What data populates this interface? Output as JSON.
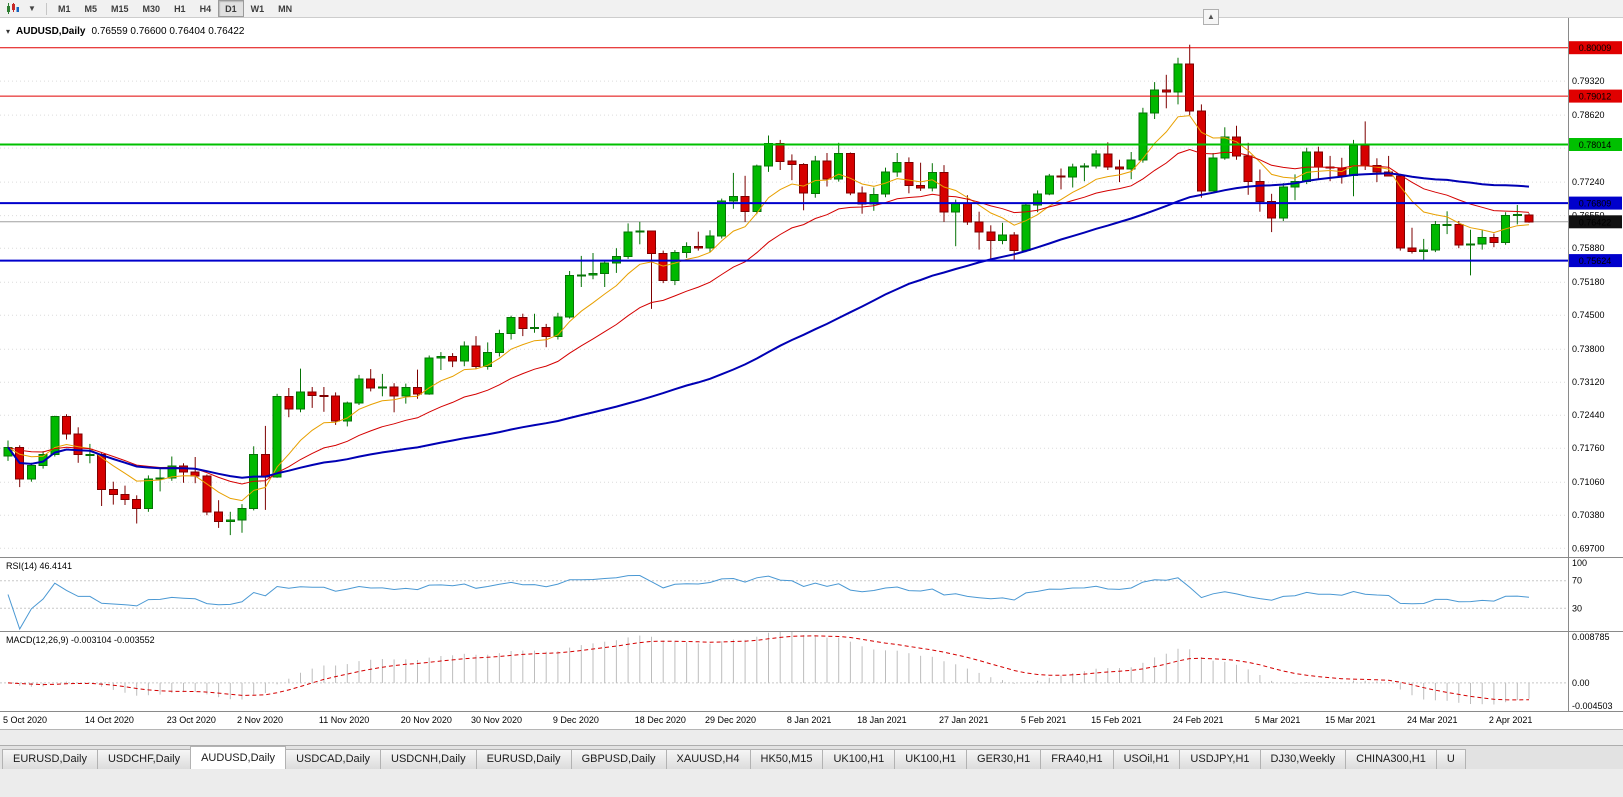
{
  "toolbar": {
    "chart_type_icon": "candlestick-chart-icon",
    "dropdown_icon": "chevron-down-icon",
    "scroll_up_icon": "chevron-up-icon",
    "periods": [
      "M1",
      "M5",
      "M15",
      "M30",
      "H1",
      "H4",
      "D1",
      "W1",
      "MN"
    ],
    "active_period": "D1"
  },
  "chart_header": {
    "symbol_label": "AUDUSD,Daily",
    "ohlc_values": "0.76559 0.76600 0.76404 0.76422",
    "collapse_glyph": "▾"
  },
  "indicators": {
    "rsi_label": "RSI(14) 46.4141",
    "macd_label": "MACD(12,26,9) -0.003104 -0.003552"
  },
  "axis": {
    "price_labels": [
      "0.79320",
      "0.78620",
      "0.77940",
      "0.77240",
      "0.76550",
      "0.75880",
      "0.75180",
      "0.74500",
      "0.73800",
      "0.73120",
      "0.72440",
      "0.71760",
      "0.71060",
      "0.70380",
      "0.69700"
    ],
    "rsi_labels": [
      "100",
      "70",
      "30"
    ],
    "macd_labels": [
      "0.008785",
      "0.00",
      "-0.004503"
    ],
    "current_price_box": "0.76422"
  },
  "hlines": [
    {
      "price": 0.80009,
      "label": "0.80009",
      "color": "#e00000",
      "width": 1
    },
    {
      "price": 0.79012,
      "label": "0.79012",
      "color": "#e00000",
      "width": 1
    },
    {
      "price": 0.78014,
      "label": "0.78014",
      "color": "#00c000",
      "width": 2
    },
    {
      "price": 0.76809,
      "label": "0.76809",
      "color": "#0000cc",
      "width": 2
    },
    {
      "price": 0.75624,
      "label": "0.75624",
      "color": "#0000cc",
      "width": 2
    }
  ],
  "chart_data": {
    "type": "candlestick",
    "symbol": "AUDUSD",
    "timeframe": "Daily",
    "y_range": {
      "max": 0.8062,
      "min": 0.6952
    },
    "current_bid": 0.76422,
    "x_labels": [
      [
        0,
        "5 Oct 2020"
      ],
      [
        7,
        "14 Oct 2020"
      ],
      [
        14,
        "23 Oct 2020"
      ],
      [
        20,
        "2 Nov 2020"
      ],
      [
        27,
        "11 Nov 2020"
      ],
      [
        34,
        "20 Nov 2020"
      ],
      [
        40,
        "30 Nov 2020"
      ],
      [
        47,
        "9 Dec 2020"
      ],
      [
        54,
        "18 Dec 2020"
      ],
      [
        60,
        "29 Dec 2020"
      ],
      [
        67,
        "8 Jan 2021"
      ],
      [
        73,
        "18 Jan 2021"
      ],
      [
        80,
        "27 Jan 2021"
      ],
      [
        87,
        "5 Feb 2021"
      ],
      [
        93,
        "15 Feb 2021"
      ],
      [
        100,
        "24 Feb 2021"
      ],
      [
        107,
        "5 Mar 2021"
      ],
      [
        113,
        "15 Mar 2021"
      ],
      [
        120,
        "24 Mar 2021"
      ],
      [
        127,
        "2 Apr 2021"
      ]
    ],
    "moving_averages": [
      {
        "period": 8,
        "method": "ema",
        "color": "#e8a000",
        "width": 1
      },
      {
        "period": 20,
        "method": "ema",
        "color": "#d40000",
        "width": 1
      },
      {
        "period": 55,
        "method": "sma",
        "color": "#0000b4",
        "width": 2
      }
    ],
    "rsi": {
      "period": 14,
      "current": 46.4141,
      "levels": [
        30,
        70
      ]
    },
    "macd": {
      "fast": 12,
      "slow": 26,
      "signal": 9,
      "current_main": -0.003104,
      "current_signal": -0.003552,
      "range": {
        "max": 0.008785,
        "min": -0.004503
      }
    },
    "colors": {
      "bull": "#00b900",
      "bull_border": "#067306",
      "bear": "#d60000",
      "bear_border": "#7d0000",
      "grid": "#dcdcdc",
      "bid": "#a0a0a0",
      "rsi": "#4a98d3",
      "macd_hist": "#bdbdbd",
      "macd_signal": "#d40000"
    },
    "ohlc": [
      [
        0.716,
        0.7192,
        0.715,
        0.7178
      ],
      [
        0.7178,
        0.7182,
        0.7096,
        0.7113
      ],
      [
        0.7113,
        0.7146,
        0.7107,
        0.714
      ],
      [
        0.714,
        0.717,
        0.7134,
        0.7163
      ],
      [
        0.7163,
        0.7243,
        0.7159,
        0.7241
      ],
      [
        0.7241,
        0.7246,
        0.7194,
        0.7205
      ],
      [
        0.7205,
        0.7219,
        0.7146,
        0.7163
      ],
      [
        0.7163,
        0.7185,
        0.7145,
        0.7163
      ],
      [
        0.7163,
        0.7166,
        0.7057,
        0.7091
      ],
      [
        0.7091,
        0.7107,
        0.706,
        0.7081
      ],
      [
        0.7081,
        0.7099,
        0.7059,
        0.707
      ],
      [
        0.707,
        0.7079,
        0.7021,
        0.7052
      ],
      [
        0.7052,
        0.712,
        0.7045,
        0.7113
      ],
      [
        0.7113,
        0.7137,
        0.7087,
        0.7115
      ],
      [
        0.7115,
        0.7159,
        0.7109,
        0.7139
      ],
      [
        0.7139,
        0.7145,
        0.7105,
        0.7127
      ],
      [
        0.7127,
        0.7158,
        0.7104,
        0.7119
      ],
      [
        0.7119,
        0.7122,
        0.7038,
        0.7045
      ],
      [
        0.7045,
        0.7069,
        0.7012,
        0.7025
      ],
      [
        0.7025,
        0.7045,
        0.6997,
        0.7028
      ],
      [
        0.7028,
        0.7061,
        0.7002,
        0.7052
      ],
      [
        0.7052,
        0.718,
        0.7048,
        0.7163
      ],
      [
        0.7163,
        0.7222,
        0.7049,
        0.7117
      ],
      [
        0.7117,
        0.7288,
        0.7115,
        0.7283
      ],
      [
        0.7283,
        0.73,
        0.724,
        0.7257
      ],
      [
        0.7257,
        0.734,
        0.725,
        0.7292
      ],
      [
        0.7292,
        0.7302,
        0.7259,
        0.7285
      ],
      [
        0.7285,
        0.7302,
        0.7251,
        0.7284
      ],
      [
        0.7284,
        0.7291,
        0.7224,
        0.7232
      ],
      [
        0.7232,
        0.7272,
        0.7221,
        0.7269
      ],
      [
        0.7269,
        0.7327,
        0.7265,
        0.7319
      ],
      [
        0.7319,
        0.7339,
        0.7293,
        0.73
      ],
      [
        0.73,
        0.7329,
        0.7283,
        0.7302
      ],
      [
        0.7302,
        0.731,
        0.725,
        0.7283
      ],
      [
        0.7283,
        0.7309,
        0.7268,
        0.7301
      ],
      [
        0.7301,
        0.7338,
        0.7278,
        0.7288
      ],
      [
        0.7288,
        0.7367,
        0.7286,
        0.7362
      ],
      [
        0.7362,
        0.7374,
        0.7337,
        0.7365
      ],
      [
        0.7365,
        0.7372,
        0.7343,
        0.7356
      ],
      [
        0.7356,
        0.7396,
        0.7345,
        0.7387
      ],
      [
        0.7387,
        0.7407,
        0.7339,
        0.7344
      ],
      [
        0.7344,
        0.7394,
        0.7338,
        0.7373
      ],
      [
        0.7373,
        0.742,
        0.7365,
        0.7412
      ],
      [
        0.7412,
        0.7449,
        0.74,
        0.7445
      ],
      [
        0.7445,
        0.7453,
        0.7407,
        0.7423
      ],
      [
        0.7423,
        0.7453,
        0.7414,
        0.7425
      ],
      [
        0.7425,
        0.7432,
        0.7384,
        0.7406
      ],
      [
        0.7406,
        0.7455,
        0.74,
        0.7446
      ],
      [
        0.7446,
        0.7541,
        0.7443,
        0.7532
      ],
      [
        0.7532,
        0.7572,
        0.7508,
        0.7533
      ],
      [
        0.7533,
        0.7578,
        0.7524,
        0.7536
      ],
      [
        0.7536,
        0.7563,
        0.7508,
        0.7557
      ],
      [
        0.7557,
        0.7588,
        0.7537,
        0.7571
      ],
      [
        0.7571,
        0.7639,
        0.7566,
        0.7621
      ],
      [
        0.7621,
        0.7642,
        0.7596,
        0.7623
      ],
      [
        0.7623,
        0.7624,
        0.7463,
        0.7577
      ],
      [
        0.7577,
        0.7583,
        0.7516,
        0.7521
      ],
      [
        0.7521,
        0.7584,
        0.7512,
        0.7579
      ],
      [
        0.7579,
        0.76,
        0.7568,
        0.7591
      ],
      [
        0.7591,
        0.7622,
        0.7583,
        0.7588
      ],
      [
        0.7588,
        0.7625,
        0.758,
        0.7613
      ],
      [
        0.7613,
        0.769,
        0.7608,
        0.7685
      ],
      [
        0.7685,
        0.7743,
        0.7669,
        0.7694
      ],
      [
        0.7694,
        0.7737,
        0.7642,
        0.7664
      ],
      [
        0.7664,
        0.776,
        0.7658,
        0.7757
      ],
      [
        0.7757,
        0.782,
        0.7745,
        0.7804
      ],
      [
        0.7804,
        0.7811,
        0.7749,
        0.7767
      ],
      [
        0.7767,
        0.7781,
        0.7728,
        0.776
      ],
      [
        0.776,
        0.7763,
        0.7666,
        0.7701
      ],
      [
        0.7701,
        0.7778,
        0.7692,
        0.7768
      ],
      [
        0.7768,
        0.7784,
        0.7715,
        0.7731
      ],
      [
        0.7731,
        0.7805,
        0.7725,
        0.7783
      ],
      [
        0.7783,
        0.7785,
        0.7697,
        0.7702
      ],
      [
        0.7702,
        0.7715,
        0.7659,
        0.7679
      ],
      [
        0.7679,
        0.7713,
        0.7665,
        0.7699
      ],
      [
        0.7699,
        0.7754,
        0.7693,
        0.7745
      ],
      [
        0.7745,
        0.7784,
        0.7735,
        0.7764
      ],
      [
        0.7764,
        0.7775,
        0.7701,
        0.7717
      ],
      [
        0.7717,
        0.7764,
        0.7706,
        0.7712
      ],
      [
        0.7712,
        0.7763,
        0.7705,
        0.7744
      ],
      [
        0.7744,
        0.7759,
        0.7642,
        0.7662
      ],
      [
        0.7662,
        0.7688,
        0.7592,
        0.7681
      ],
      [
        0.7681,
        0.7697,
        0.7636,
        0.7642
      ],
      [
        0.7642,
        0.7663,
        0.7585,
        0.7621
      ],
      [
        0.7621,
        0.7635,
        0.7563,
        0.7604
      ],
      [
        0.7604,
        0.764,
        0.7596,
        0.7615
      ],
      [
        0.7615,
        0.7621,
        0.7564,
        0.7583
      ],
      [
        0.7583,
        0.768,
        0.758,
        0.7677
      ],
      [
        0.7677,
        0.7707,
        0.7662,
        0.77
      ],
      [
        0.77,
        0.7741,
        0.7697,
        0.7737
      ],
      [
        0.7737,
        0.7752,
        0.7709,
        0.7735
      ],
      [
        0.7735,
        0.7762,
        0.7713,
        0.7755
      ],
      [
        0.7755,
        0.7763,
        0.7726,
        0.7757
      ],
      [
        0.7757,
        0.779,
        0.7752,
        0.7782
      ],
      [
        0.7782,
        0.7806,
        0.7749,
        0.7755
      ],
      [
        0.7755,
        0.777,
        0.7724,
        0.7751
      ],
      [
        0.7751,
        0.7786,
        0.773,
        0.777
      ],
      [
        0.777,
        0.7877,
        0.7764,
        0.7866
      ],
      [
        0.7866,
        0.793,
        0.7854,
        0.7914
      ],
      [
        0.7914,
        0.7945,
        0.7876,
        0.791
      ],
      [
        0.791,
        0.798,
        0.7884,
        0.7967
      ],
      [
        0.7967,
        0.8007,
        0.7862,
        0.787
      ],
      [
        0.787,
        0.7884,
        0.7692,
        0.7706
      ],
      [
        0.7706,
        0.7784,
        0.7705,
        0.7774
      ],
      [
        0.7774,
        0.7837,
        0.777,
        0.7817
      ],
      [
        0.7817,
        0.784,
        0.777,
        0.7778
      ],
      [
        0.7778,
        0.7805,
        0.7698,
        0.7725
      ],
      [
        0.7725,
        0.775,
        0.7663,
        0.7684
      ],
      [
        0.7684,
        0.77,
        0.7621,
        0.765
      ],
      [
        0.765,
        0.7722,
        0.7644,
        0.7714
      ],
      [
        0.7714,
        0.774,
        0.7687,
        0.7725
      ],
      [
        0.7725,
        0.7795,
        0.772,
        0.7786
      ],
      [
        0.7786,
        0.7797,
        0.773,
        0.7755
      ],
      [
        0.7755,
        0.7778,
        0.7726,
        0.7753
      ],
      [
        0.7753,
        0.7774,
        0.7721,
        0.7738
      ],
      [
        0.7738,
        0.7811,
        0.7695,
        0.7799
      ],
      [
        0.7799,
        0.7849,
        0.7749,
        0.7758
      ],
      [
        0.7758,
        0.7773,
        0.7724,
        0.7745
      ],
      [
        0.7745,
        0.7778,
        0.774,
        0.7737
      ],
      [
        0.7737,
        0.7741,
        0.7583,
        0.7588
      ],
      [
        0.7588,
        0.763,
        0.7577,
        0.7581
      ],
      [
        0.7581,
        0.7607,
        0.7562,
        0.7584
      ],
      [
        0.7584,
        0.7644,
        0.758,
        0.7637
      ],
      [
        0.7637,
        0.7664,
        0.7617,
        0.7637
      ],
      [
        0.7637,
        0.7644,
        0.7588,
        0.7595
      ],
      [
        0.7595,
        0.7626,
        0.7532,
        0.7597
      ],
      [
        0.7597,
        0.7625,
        0.7585,
        0.761
      ],
      [
        0.761,
        0.7618,
        0.759,
        0.76
      ],
      [
        0.76,
        0.7662,
        0.7595,
        0.7655
      ],
      [
        0.7655,
        0.7677,
        0.7637,
        0.7657
      ],
      [
        0.76559,
        0.766,
        0.76404,
        0.76422
      ]
    ]
  },
  "tabs": {
    "active_index": 2,
    "items": [
      "EURUSD,Daily",
      "USDCHF,Daily",
      "AUDUSD,Daily",
      "USDCAD,Daily",
      "USDCNH,Daily",
      "EURUSD,Daily",
      "GBPUSD,Daily",
      "XAUUSD,H4",
      "HK50,M15",
      "UK100,H1",
      "UK100,H1",
      "GER30,H1",
      "FRA40,H1",
      "USOil,H1",
      "USDJPY,H1",
      "DJ30,Weekly",
      "CHINA300,H1",
      "U"
    ]
  }
}
